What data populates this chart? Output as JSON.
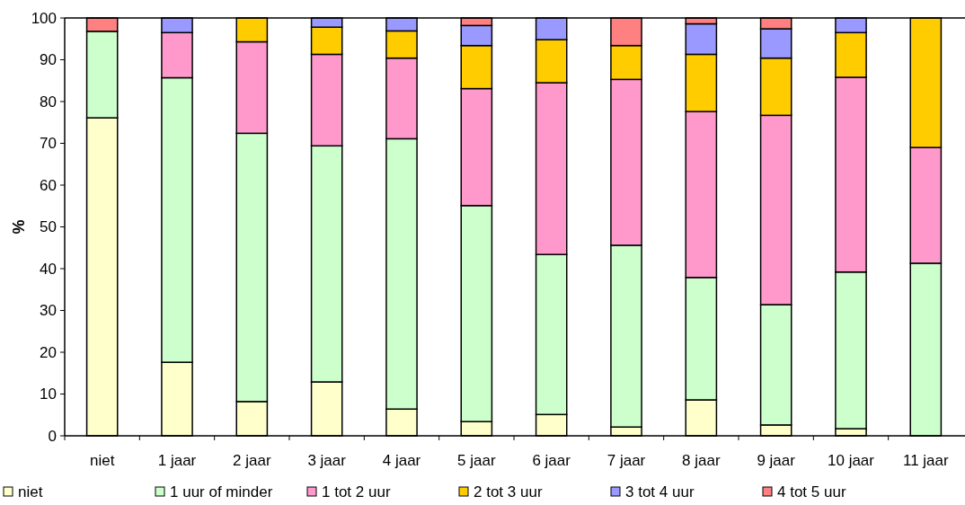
{
  "chart_data": {
    "type": "bar",
    "stacked": true,
    "ylabel": "%",
    "categories": [
      "niet",
      "1 jaar",
      "2 jaar",
      "3 jaar",
      "4 jaar",
      "5 jaar",
      "6 jaar",
      "7 jaar",
      "8 jaar",
      "9 jaar",
      "10 jaar",
      "11 jaar"
    ],
    "series": [
      {
        "name": "niet",
        "color": "#ffffcc",
        "values": [
          76.1,
          17.6,
          8.2,
          12.9,
          6.4,
          3.4,
          5.1,
          2.1,
          8.6,
          2.6,
          1.7,
          0
        ]
      },
      {
        "name": "1 uur of minder",
        "color": "#ccffcc",
        "values": [
          20.7,
          68.1,
          64.2,
          56.5,
          64.7,
          51.7,
          38.3,
          43.5,
          29.3,
          28.8,
          37.5,
          41.3
        ]
      },
      {
        "name": "1 tot 2 uur",
        "color": "#ff99cc",
        "values": [
          0,
          10.8,
          21.9,
          21.9,
          19.3,
          28,
          41.1,
          39.7,
          39.7,
          45.3,
          46.6,
          27.7
        ]
      },
      {
        "name": "2 tot 3 uur",
        "color": "#ffcc00",
        "values": [
          0,
          0,
          5.7,
          6.5,
          6.5,
          10.3,
          10.3,
          8.1,
          13.7,
          13.7,
          10.7,
          31
        ]
      },
      {
        "name": "3 tot 4 uur",
        "color": "#9999ff",
        "values": [
          0,
          3.5,
          0,
          2.2,
          3.1,
          4.8,
          5.2,
          0,
          7.3,
          7,
          3.5,
          0
        ]
      },
      {
        "name": "4 tot 5 uur",
        "color": "#ff8080",
        "values": [
          3.2,
          0,
          0,
          0,
          0,
          1.8,
          0,
          6.6,
          1.4,
          2.6,
          0,
          0
        ]
      }
    ],
    "ylim": [
      0,
      100
    ],
    "yticks": [
      0,
      10,
      20,
      30,
      40,
      50,
      60,
      70,
      80,
      90,
      100
    ],
    "grid": false,
    "legend": "bottom"
  }
}
